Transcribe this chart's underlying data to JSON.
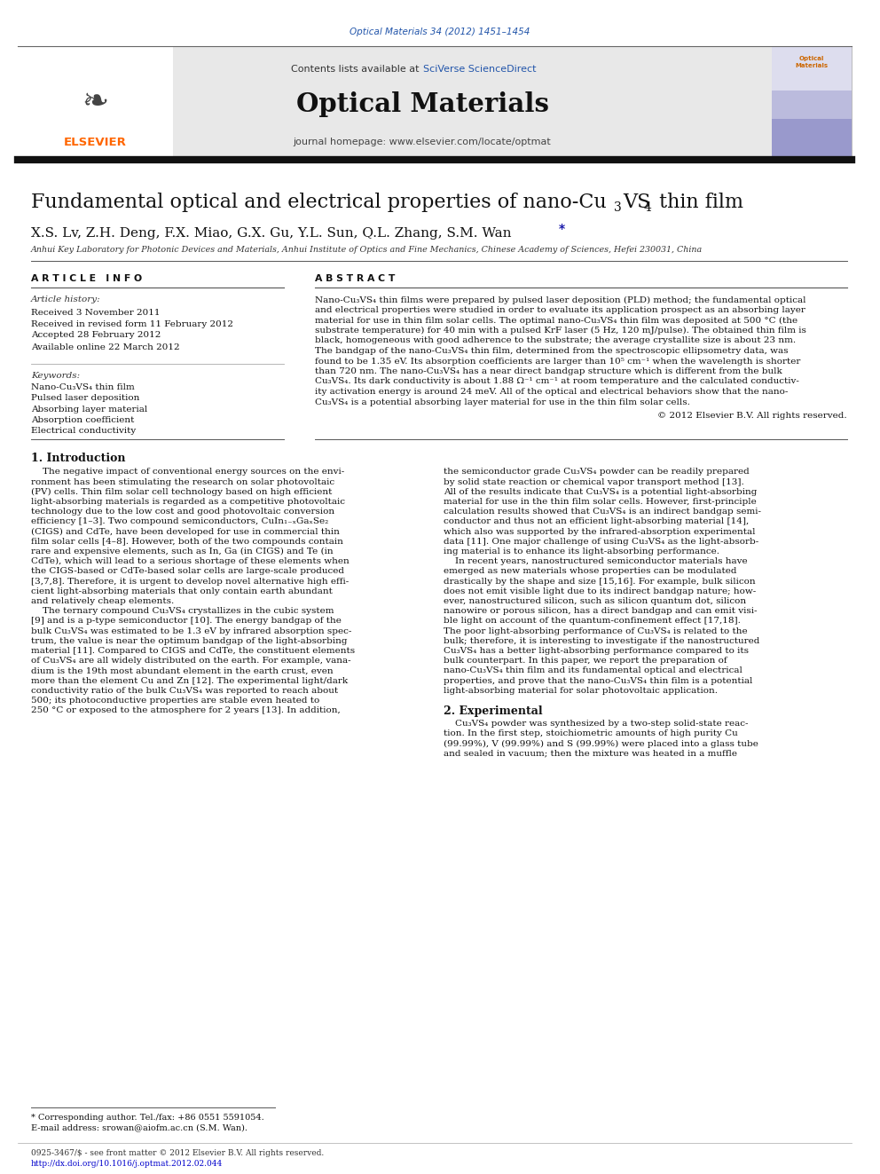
{
  "page_width": 9.92,
  "page_height": 13.23,
  "bg_color": "#ffffff",
  "journal_ref_color": "#2255aa",
  "journal_ref": "Optical Materials 34 (2012) 1451–1454",
  "header_bg": "#e8e8e8",
  "contents_text": "Contents lists available at ",
  "sciverse_text": "SciVerse ScienceDirect",
  "sciverse_color": "#2255aa",
  "journal_title": "Optical Materials",
  "homepage_text": "journal homepage: www.elsevier.com/locate/optmat",
  "elsevier_color": "#ff6600",
  "thick_bar_color": "#222222",
  "authors": "X.S. Lv, Z.H. Deng, F.X. Miao, G.X. Gu, Y.L. Sun, Q.L. Zhang, S.M. Wan",
  "affiliation": "Anhui Key Laboratory for Photonic Devices and Materials, Anhui Institute of Optics and Fine Mechanics, Chinese Academy of Sciences, Hefei 230031, China",
  "article_info_header": "A R T I C L E   I N F O",
  "abstract_header": "A B S T R A C T",
  "article_history_label": "Article history:",
  "received": "Received 3 November 2011",
  "revised": "Received in revised form 11 February 2012",
  "accepted": "Accepted 28 February 2012",
  "available": "Available online 22 March 2012",
  "keywords_label": "Keywords:",
  "keywords": [
    "Nano-Cu₃VS₄ thin film",
    "Pulsed laser deposition",
    "Absorbing layer material",
    "Absorption coefficient",
    "Electrical conductivity"
  ],
  "copyright": "© 2012 Elsevier B.V. All rights reserved.",
  "section1_title": "1. Introduction",
  "section2_title": "2. Experimental",
  "footnote_star": "* Corresponding author. Tel./fax: +86 0551 5591054.",
  "footnote_email": "E-mail address: srowan@aiofm.ac.cn (S.M. Wan).",
  "footer_issn": "0925-3467/$ - see front matter © 2012 Elsevier B.V. All rights reserved.",
  "footer_doi": "http://dx.doi.org/10.1016/j.optmat.2012.02.044",
  "link_color": "#0000cc",
  "ref_color": "#1a1aaa",
  "abstract_lines": [
    "Nano-Cu₃VS₄ thin films were prepared by pulsed laser deposition (PLD) method; the fundamental optical",
    "and electrical properties were studied in order to evaluate its application prospect as an absorbing layer",
    "material for use in thin film solar cells. The optimal nano-Cu₃VS₄ thin film was deposited at 500 °C (the",
    "substrate temperature) for 40 min with a pulsed KrF laser (5 Hz, 120 mJ/pulse). The obtained thin film is",
    "black, homogeneous with good adherence to the substrate; the average crystallite size is about 23 nm.",
    "The bandgap of the nano-Cu₃VS₄ thin film, determined from the spectroscopic ellipsometry data, was",
    "found to be 1.35 eV. Its absorption coefficients are larger than 10⁵ cm⁻¹ when the wavelength is shorter",
    "than 720 nm. The nano-Cu₃VS₄ has a near direct bandgap structure which is different from the bulk",
    "Cu₃VS₄. Its dark conductivity is about 1.88 Ω⁻¹ cm⁻¹ at room temperature and the calculated conductiv-",
    "ity activation energy is around 24 meV. All of the optical and electrical behaviors show that the nano-",
    "Cu₃VS₄ is a potential absorbing layer material for use in the thin film solar cells."
  ],
  "col1_lines": [
    "    The negative impact of conventional energy sources on the envi-",
    "ronment has been stimulating the research on solar photovoltaic",
    "(PV) cells. Thin film solar cell technology based on high efficient",
    "light-absorbing materials is regarded as a competitive photovoltaic",
    "technology due to the low cost and good photovoltaic conversion",
    "efficiency [1–3]. Two compound semiconductors, CuIn₁₋ₓGaₓSe₂",
    "(CIGS) and CdTe, have been developed for use in commercial thin",
    "film solar cells [4–8]. However, both of the two compounds contain",
    "rare and expensive elements, such as In, Ga (in CIGS) and Te (in",
    "CdTe), which will lead to a serious shortage of these elements when",
    "the CIGS-based or CdTe-based solar cells are large-scale produced",
    "[3,7,8]. Therefore, it is urgent to develop novel alternative high effi-",
    "cient light-absorbing materials that only contain earth abundant",
    "and relatively cheap elements.",
    "    The ternary compound Cu₃VS₄ crystallizes in the cubic system",
    "[9] and is a p-type semiconductor [10]. The energy bandgap of the",
    "bulk Cu₃VS₄ was estimated to be 1.3 eV by infrared absorption spec-",
    "trum, the value is near the optimum bandgap of the light-absorbing",
    "material [11]. Compared to CIGS and CdTe, the constituent elements",
    "of Cu₃VS₄ are all widely distributed on the earth. For example, vana-",
    "dium is the 19th most abundant element in the earth crust, even",
    "more than the element Cu and Zn [12]. The experimental light/dark",
    "conductivity ratio of the bulk Cu₃VS₄ was reported to reach about",
    "500; its photoconductive properties are stable even heated to",
    "250 °C or exposed to the atmosphere for 2 years [13]. In addition,"
  ],
  "col2_lines": [
    "the semiconductor grade Cu₃VS₄ powder can be readily prepared",
    "by solid state reaction or chemical vapor transport method [13].",
    "All of the results indicate that Cu₃VS₄ is a potential light-absorbing",
    "material for use in the thin film solar cells. However, first-principle",
    "calculation results showed that Cu₃VS₄ is an indirect bandgap semi-",
    "conductor and thus not an efficient light-absorbing material [14],",
    "which also was supported by the infrared-absorption experimental",
    "data [11]. One major challenge of using Cu₃VS₄ as the light-absorb-",
    "ing material is to enhance its light-absorbing performance.",
    "    In recent years, nanostructured semiconductor materials have",
    "emerged as new materials whose properties can be modulated",
    "drastically by the shape and size [15,16]. For example, bulk silicon",
    "does not emit visible light due to its indirect bandgap nature; how-",
    "ever, nanostructured silicon, such as silicon quantum dot, silicon",
    "nanowire or porous silicon, has a direct bandgap and can emit visi-",
    "ble light on account of the quantum-confinement effect [17,18].",
    "The poor light-absorbing performance of Cu₃VS₄ is related to the",
    "bulk; therefore, it is interesting to investigate if the nanostructured",
    "Cu₃VS₄ has a better light-absorbing performance compared to its",
    "bulk counterpart. In this paper, we report the preparation of",
    "nano-Cu₃VS₄ thin film and its fundamental optical and electrical",
    "properties, and prove that the nano-Cu₃VS₄ thin film is a potential",
    "light-absorbing material for solar photovoltaic application."
  ],
  "exp_lines": [
    "    Cu₃VS₄ powder was synthesized by a two-step solid-state reac-",
    "tion. In the first step, stoichiometric amounts of high purity Cu",
    "(99.99%), V (99.99%) and S (99.99%) were placed into a glass tube",
    "and sealed in vacuum; then the mixture was heated in a muffle"
  ]
}
